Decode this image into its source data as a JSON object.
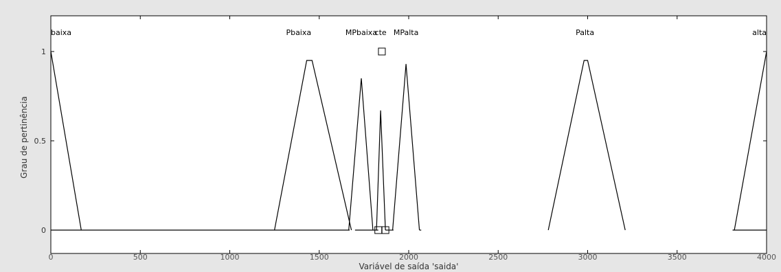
{
  "chart_data": {
    "type": "line",
    "title": "",
    "xlabel": "Variável de saída 'saida'",
    "ylabel": "Grau de pertinência",
    "xlim": [
      0,
      4000
    ],
    "ylim": [
      0,
      1
    ],
    "x_ticks": [
      0,
      500,
      1000,
      1500,
      2000,
      2500,
      3000,
      3500,
      4000
    ],
    "y_ticks": [
      0,
      0.5,
      1
    ],
    "y_tick_labels": [
      "0",
      "0.5",
      "1"
    ],
    "grid": false,
    "series": [
      {
        "name": "baixa",
        "label_x": 0,
        "x": [
          0,
          170
        ],
        "y": [
          1,
          0
        ]
      },
      {
        "name": "Pbaixa",
        "label_x": 1385,
        "x": [
          1250,
          1430,
          1460,
          1680
        ],
        "y": [
          0,
          0.95,
          0.95,
          0
        ]
      },
      {
        "name": "MPbaixa",
        "label_x": 1735,
        "x": [
          1665,
          1735,
          1800
        ],
        "y": [
          0,
          0.85,
          0
        ]
      },
      {
        "name": "cte",
        "label_x": 1843,
        "x": [
          1820,
          1843,
          1870
        ],
        "y": [
          0,
          0.67,
          0
        ]
      },
      {
        "name": "MPalta",
        "label_x": 1985,
        "x": [
          1910,
          1985,
          2060
        ],
        "y": [
          0,
          0.93,
          0
        ]
      },
      {
        "name": "Palta",
        "label_x": 2985,
        "x": [
          2780,
          2980,
          3000,
          3210
        ],
        "y": [
          0,
          0.95,
          0.95,
          0
        ]
      },
      {
        "name": "alta",
        "label_x": 4000,
        "x": [
          3820,
          4000
        ],
        "y": [
          0,
          1
        ]
      }
    ],
    "baseline_segments": [
      [
        0,
        1670
      ],
      [
        1700,
        1830
      ],
      [
        1870,
        1915
      ],
      [
        2060,
        2070
      ],
      [
        3810,
        4000
      ]
    ],
    "markers": [
      {
        "x": 1850,
        "y": 1.0
      },
      {
        "x": 1830,
        "y": 0.0
      },
      {
        "x": 1870,
        "y": 0.0
      }
    ]
  }
}
